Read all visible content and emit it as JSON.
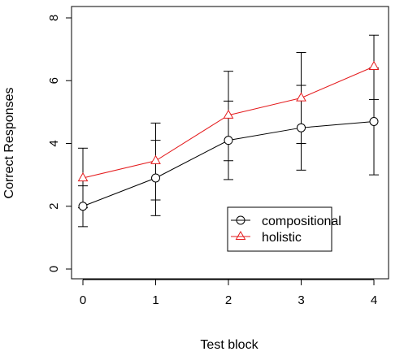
{
  "chart_data": {
    "type": "line",
    "xlabel": "Test block",
    "ylabel": "Correct Responses",
    "x": [
      0,
      1,
      2,
      3,
      4
    ],
    "xlim": [
      0,
      4
    ],
    "ylim": [
      0,
      8
    ],
    "x_ticks": [
      "0",
      "1",
      "2",
      "3",
      "4"
    ],
    "y_ticks": [
      "0",
      "2",
      "4",
      "6",
      "8"
    ],
    "grid": false,
    "legend_position": "lower-right",
    "series": [
      {
        "name": "compositional",
        "color": "#000000",
        "marker": "circle",
        "values": [
          2.0,
          2.9,
          4.1,
          4.5,
          4.7
        ],
        "error_low": [
          1.35,
          1.7,
          2.85,
          3.15,
          3.0
        ],
        "error_high": [
          2.65,
          4.1,
          5.35,
          5.85,
          6.4
        ]
      },
      {
        "name": "holistic",
        "color": "#e41a1c",
        "marker": "triangle",
        "values": [
          2.9,
          3.45,
          4.9,
          5.45,
          6.45
        ],
        "error_low": [
          1.95,
          2.2,
          3.45,
          4.0,
          5.4
        ],
        "error_high": [
          3.85,
          4.65,
          6.3,
          6.9,
          7.45
        ]
      }
    ]
  }
}
